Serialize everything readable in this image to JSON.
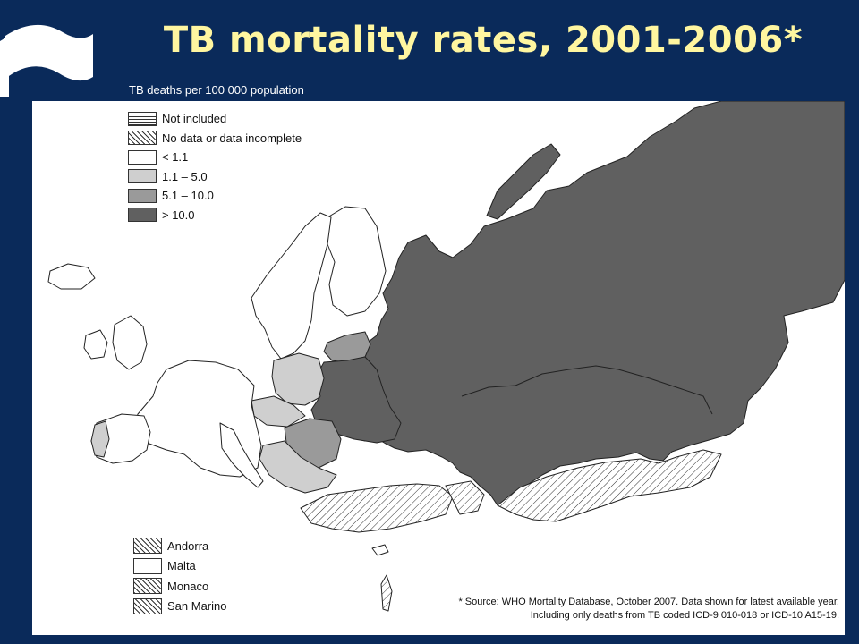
{
  "title": "TB mortality rates, 2001-2006*",
  "subtitle": "TB deaths per 100 000 population",
  "colors": {
    "frame": "#0a2a5a",
    "title": "#fff6a0",
    "class_lt_1_1": "#ffffff",
    "class_1_1_5_0": "#cfcfcf",
    "class_5_1_10_0": "#9a9a9a",
    "class_gt_10_0": "#606060"
  },
  "legend": [
    {
      "label": "Not included",
      "pattern": "horizontal-lines"
    },
    {
      "label": "No data or data incomplete",
      "pattern": "diagonal-hatch"
    },
    {
      "label": "< 1.1",
      "pattern": "solid-white"
    },
    {
      "label": "1.1 – 5.0",
      "pattern": "solid-light-grey"
    },
    {
      "label": "5.1 – 10.0",
      "pattern": "solid-mid-grey"
    },
    {
      "label": "> 10.0",
      "pattern": "solid-dark-grey"
    }
  ],
  "microstates": [
    {
      "label": "Andorra",
      "pattern": "diagonal-hatch"
    },
    {
      "label": "Malta",
      "pattern": "solid-white"
    },
    {
      "label": "Monaco",
      "pattern": "diagonal-hatch"
    },
    {
      "label": "San Marino",
      "pattern": "diagonal-hatch"
    }
  ],
  "source_line1": "* Source: WHO Mortality Database, October 2007.  Data shown for latest available year.",
  "source_line2": "Including only deaths from TB coded ICD-9 010-018  or ICD-10  A15-19.",
  "icons": [
    "flag-logo-icon"
  ]
}
